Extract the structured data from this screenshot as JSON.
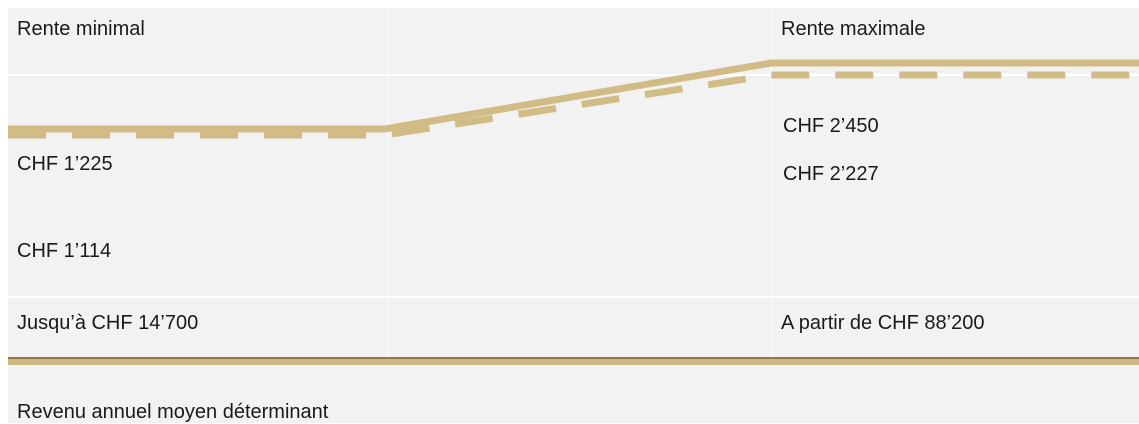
{
  "chart_data": {
    "type": "line",
    "x": [
      "Jusqu’à CHF 14’700",
      "A partir de CHF 88’200"
    ],
    "series": [
      {
        "values": [
          1225,
          2450
        ],
        "style": "solid"
      },
      {
        "values": [
          1114,
          2227
        ],
        "style": "dashed"
      }
    ],
    "column_headers": [
      "Rente minimal",
      "Rente maximale"
    ],
    "point_labels": {
      "min_solid": "CHF 1’225",
      "min_dashed": "CHF 1’114",
      "max_solid": "CHF 2’450",
      "max_dashed": "CHF 2’227"
    },
    "xlabel": "Revenu annuel moyen déterminant",
    "colors": {
      "line": "#d2bc85",
      "panel": "#f2f2f2",
      "baseline": "#cdb882"
    }
  }
}
